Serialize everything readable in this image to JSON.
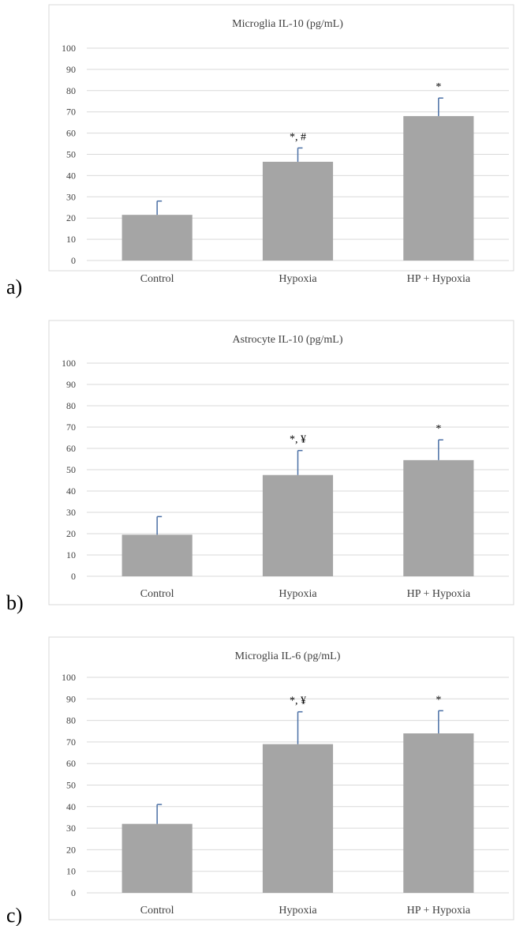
{
  "colors": {
    "bar": "#a5a5a5",
    "error_bar": "#4a6fa5",
    "grid": "#d9d9d9",
    "frame": "#d9d9d9",
    "text": "#404040",
    "annotation": "#000000"
  },
  "chart_data": [
    {
      "type": "bar",
      "panel_label": "a)",
      "title": "Microglia IL-10 (pg/mL)",
      "categories": [
        "Control",
        "Hypoxia",
        "HP + Hypoxia"
      ],
      "values": [
        21.5,
        46.5,
        68
      ],
      "error_plus": [
        6.5,
        6.5,
        8.5
      ],
      "annotations": [
        "",
        "*, #",
        "*"
      ],
      "ylim": [
        0,
        100
      ],
      "yticks": [
        0,
        10,
        20,
        30,
        40,
        50,
        60,
        70,
        80,
        90,
        100
      ],
      "grid": true,
      "legend": "none"
    },
    {
      "type": "bar",
      "panel_label": "b)",
      "title": "Astrocyte IL-10 (pg/mL)",
      "categories": [
        "Control",
        "Hypoxia",
        "HP + Hypoxia"
      ],
      "values": [
        19.5,
        47.5,
        54.5
      ],
      "error_plus": [
        8.5,
        11.5,
        9.5
      ],
      "annotations": [
        "",
        "*, ¥",
        "*"
      ],
      "ylim": [
        0,
        100
      ],
      "yticks": [
        0,
        10,
        20,
        30,
        40,
        50,
        60,
        70,
        80,
        90,
        100
      ],
      "grid": true,
      "legend": "none"
    },
    {
      "type": "bar",
      "panel_label": "c)",
      "title": "Microglia IL-6 (pg/mL)",
      "categories": [
        "Control",
        "Hypoxia",
        "HP + Hypoxia"
      ],
      "values": [
        32,
        69,
        74
      ],
      "error_plus": [
        9,
        15,
        10.5
      ],
      "annotations": [
        "",
        "*, ¥",
        "*"
      ],
      "ylim": [
        0,
        100
      ],
      "yticks": [
        0,
        10,
        20,
        30,
        40,
        50,
        60,
        70,
        80,
        90,
        100
      ],
      "grid": true,
      "legend": "none"
    }
  ]
}
